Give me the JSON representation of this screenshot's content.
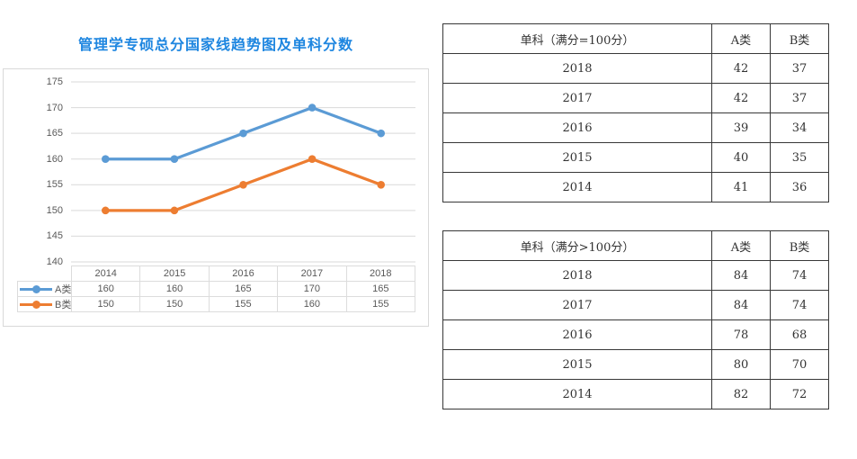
{
  "chart": {
    "title": "管理学专硕总分国家线趋势图及单科分数",
    "title_color": "#1e86e0"
  },
  "chart_data": {
    "type": "line",
    "title": "管理学专硕总分国家线趋势图及单科分数",
    "categories": [
      "2014",
      "2015",
      "2016",
      "2017",
      "2018"
    ],
    "series": [
      {
        "name": "A类",
        "values": [
          160,
          160,
          165,
          170,
          165
        ],
        "color": "#5b9bd5"
      },
      {
        "name": "B类",
        "values": [
          150,
          150,
          155,
          160,
          155
        ],
        "color": "#ed7d31"
      }
    ],
    "ylim": [
      140,
      175
    ],
    "yticks": [
      175,
      170,
      165,
      160,
      155,
      150,
      145,
      140
    ],
    "grid": true,
    "gridline_color": "#d9d9d9",
    "legend_position": "table-left",
    "xlabel": "",
    "ylabel": ""
  },
  "tables": [
    {
      "title": "单科（满分=100分）",
      "col_a": "A类",
      "col_b": "B类",
      "rows": [
        {
          "year": "2018",
          "a": 42,
          "b": 37
        },
        {
          "year": "2017",
          "a": 42,
          "b": 37
        },
        {
          "year": "2016",
          "a": 39,
          "b": 34
        },
        {
          "year": "2015",
          "a": 40,
          "b": 35
        },
        {
          "year": "2014",
          "a": 41,
          "b": 36
        }
      ]
    },
    {
      "title": "单科（满分>100分）",
      "col_a": "A类",
      "col_b": "B类",
      "rows": [
        {
          "year": "2018",
          "a": 84,
          "b": 74
        },
        {
          "year": "2017",
          "a": 84,
          "b": 74
        },
        {
          "year": "2016",
          "a": 78,
          "b": 68
        },
        {
          "year": "2015",
          "a": 80,
          "b": 70
        },
        {
          "year": "2014",
          "a": 82,
          "b": 72
        }
      ]
    }
  ]
}
